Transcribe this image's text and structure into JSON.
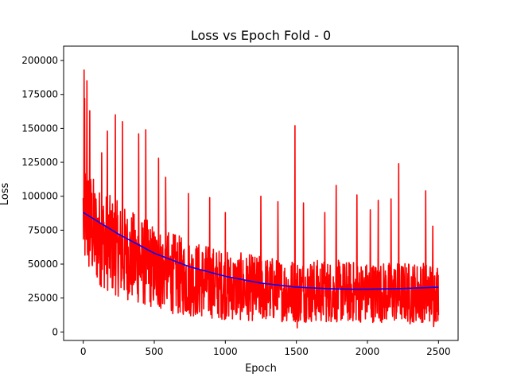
{
  "chart_data": {
    "type": "line",
    "title": "Loss vs Epoch Fold - 0",
    "xlabel": "Epoch",
    "ylabel": "Loss",
    "xlim": [
      -138,
      2638
    ],
    "ylim": [
      -6260,
      210600
    ],
    "xticks": [
      0,
      500,
      1000,
      1500,
      2000,
      2500
    ],
    "xtick_labels": [
      "0",
      "500",
      "1000",
      "1500",
      "2000",
      "2500"
    ],
    "yticks": [
      0,
      25000,
      50000,
      75000,
      100000,
      125000,
      150000,
      175000,
      200000
    ],
    "ytick_labels": [
      "0",
      "25000",
      "50000",
      "75000",
      "100000",
      "125000",
      "150000",
      "175000",
      "200000"
    ],
    "grid": false,
    "legend": "none",
    "series": [
      {
        "name": "",
        "color": "#ff0000",
        "kind": "noisy loss per epoch",
        "x_range": [
          0,
          2500
        ],
        "envelope": {
          "x": [
            0,
            50,
            100,
            200,
            300,
            400,
            500,
            600,
            700,
            800,
            900,
            1000,
            1200,
            1400,
            1600,
            1800,
            2000,
            2200,
            2400,
            2500
          ],
          "low": [
            46000,
            40000,
            35000,
            28000,
            24000,
            20000,
            17000,
            14000,
            12000,
            11000,
            10000,
            9000,
            8000,
            7500,
            7000,
            7000,
            7000,
            7000,
            7000,
            7000
          ],
          "high": [
            130000,
            120000,
            108000,
            100000,
            92000,
            86000,
            80000,
            75000,
            70000,
            67000,
            64000,
            60000,
            57000,
            55000,
            54000,
            53000,
            52000,
            52000,
            52000,
            52000
          ]
        },
        "peaks": [
          {
            "x": 5,
            "y": 193000
          },
          {
            "x": 10,
            "y": 172000
          },
          {
            "x": 25,
            "y": 185000
          },
          {
            "x": 45,
            "y": 163000
          },
          {
            "x": 130,
            "y": 132000
          },
          {
            "x": 170,
            "y": 148000
          },
          {
            "x": 225,
            "y": 160000
          },
          {
            "x": 275,
            "y": 155000
          },
          {
            "x": 390,
            "y": 146000
          },
          {
            "x": 440,
            "y": 149000
          },
          {
            "x": 530,
            "y": 128000
          },
          {
            "x": 580,
            "y": 114000
          },
          {
            "x": 740,
            "y": 102000
          },
          {
            "x": 890,
            "y": 99000
          },
          {
            "x": 1000,
            "y": 88000
          },
          {
            "x": 1250,
            "y": 100000
          },
          {
            "x": 1370,
            "y": 96000
          },
          {
            "x": 1490,
            "y": 152000
          },
          {
            "x": 1550,
            "y": 95000
          },
          {
            "x": 1700,
            "y": 88000
          },
          {
            "x": 1780,
            "y": 108000
          },
          {
            "x": 1925,
            "y": 101000
          },
          {
            "x": 2020,
            "y": 90000
          },
          {
            "x": 2075,
            "y": 97000
          },
          {
            "x": 2165,
            "y": 98000
          },
          {
            "x": 2220,
            "y": 124000
          },
          {
            "x": 2410,
            "y": 104000
          },
          {
            "x": 2460,
            "y": 78000
          }
        ],
        "troughs": [
          {
            "x": 1505,
            "y": 3000
          },
          {
            "x": 2465,
            "y": 4000
          },
          {
            "x": 2300,
            "y": 6000
          }
        ]
      },
      {
        "name": "",
        "color": "#0000ff",
        "kind": "smooth trend",
        "x": [
          0,
          250,
          500,
          750,
          1000,
          1250,
          1500,
          1750,
          1900,
          2000,
          2250,
          2500
        ],
        "values": [
          88000,
          72000,
          58000,
          48000,
          41000,
          36000,
          33000,
          31800,
          31500,
          31500,
          32000,
          33000
        ]
      }
    ]
  }
}
